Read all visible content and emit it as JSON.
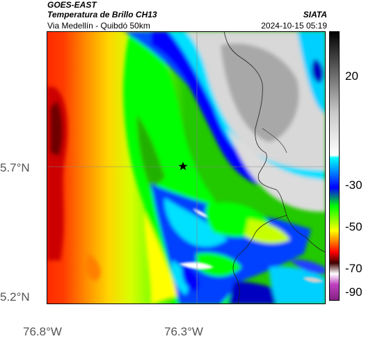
{
  "header": {
    "source": "GOES-EAST",
    "title": "Temperatura de Brillo CH13",
    "subtitle": "Via Medellín - Quibdó 50km",
    "org": "SIATA",
    "timestamp": "2024-10-15 05:19"
  },
  "map": {
    "lat_labels": [
      "5.7°N",
      "5.2°N"
    ],
    "lon_labels": [
      "76.8°W",
      "76.3°W"
    ],
    "marker": "star"
  },
  "colorbar": {
    "tick_labels": [
      "20",
      "-30",
      "-50",
      "-70",
      "-90"
    ],
    "colors": [
      "#000000",
      "#808080",
      "#ffffff",
      "#00ffff",
      "#0000ff",
      "#00ff00",
      "#ffff00",
      "#ff8000",
      "#ff0000",
      "#400000",
      "#ffffff",
      "#a020a0"
    ]
  }
}
